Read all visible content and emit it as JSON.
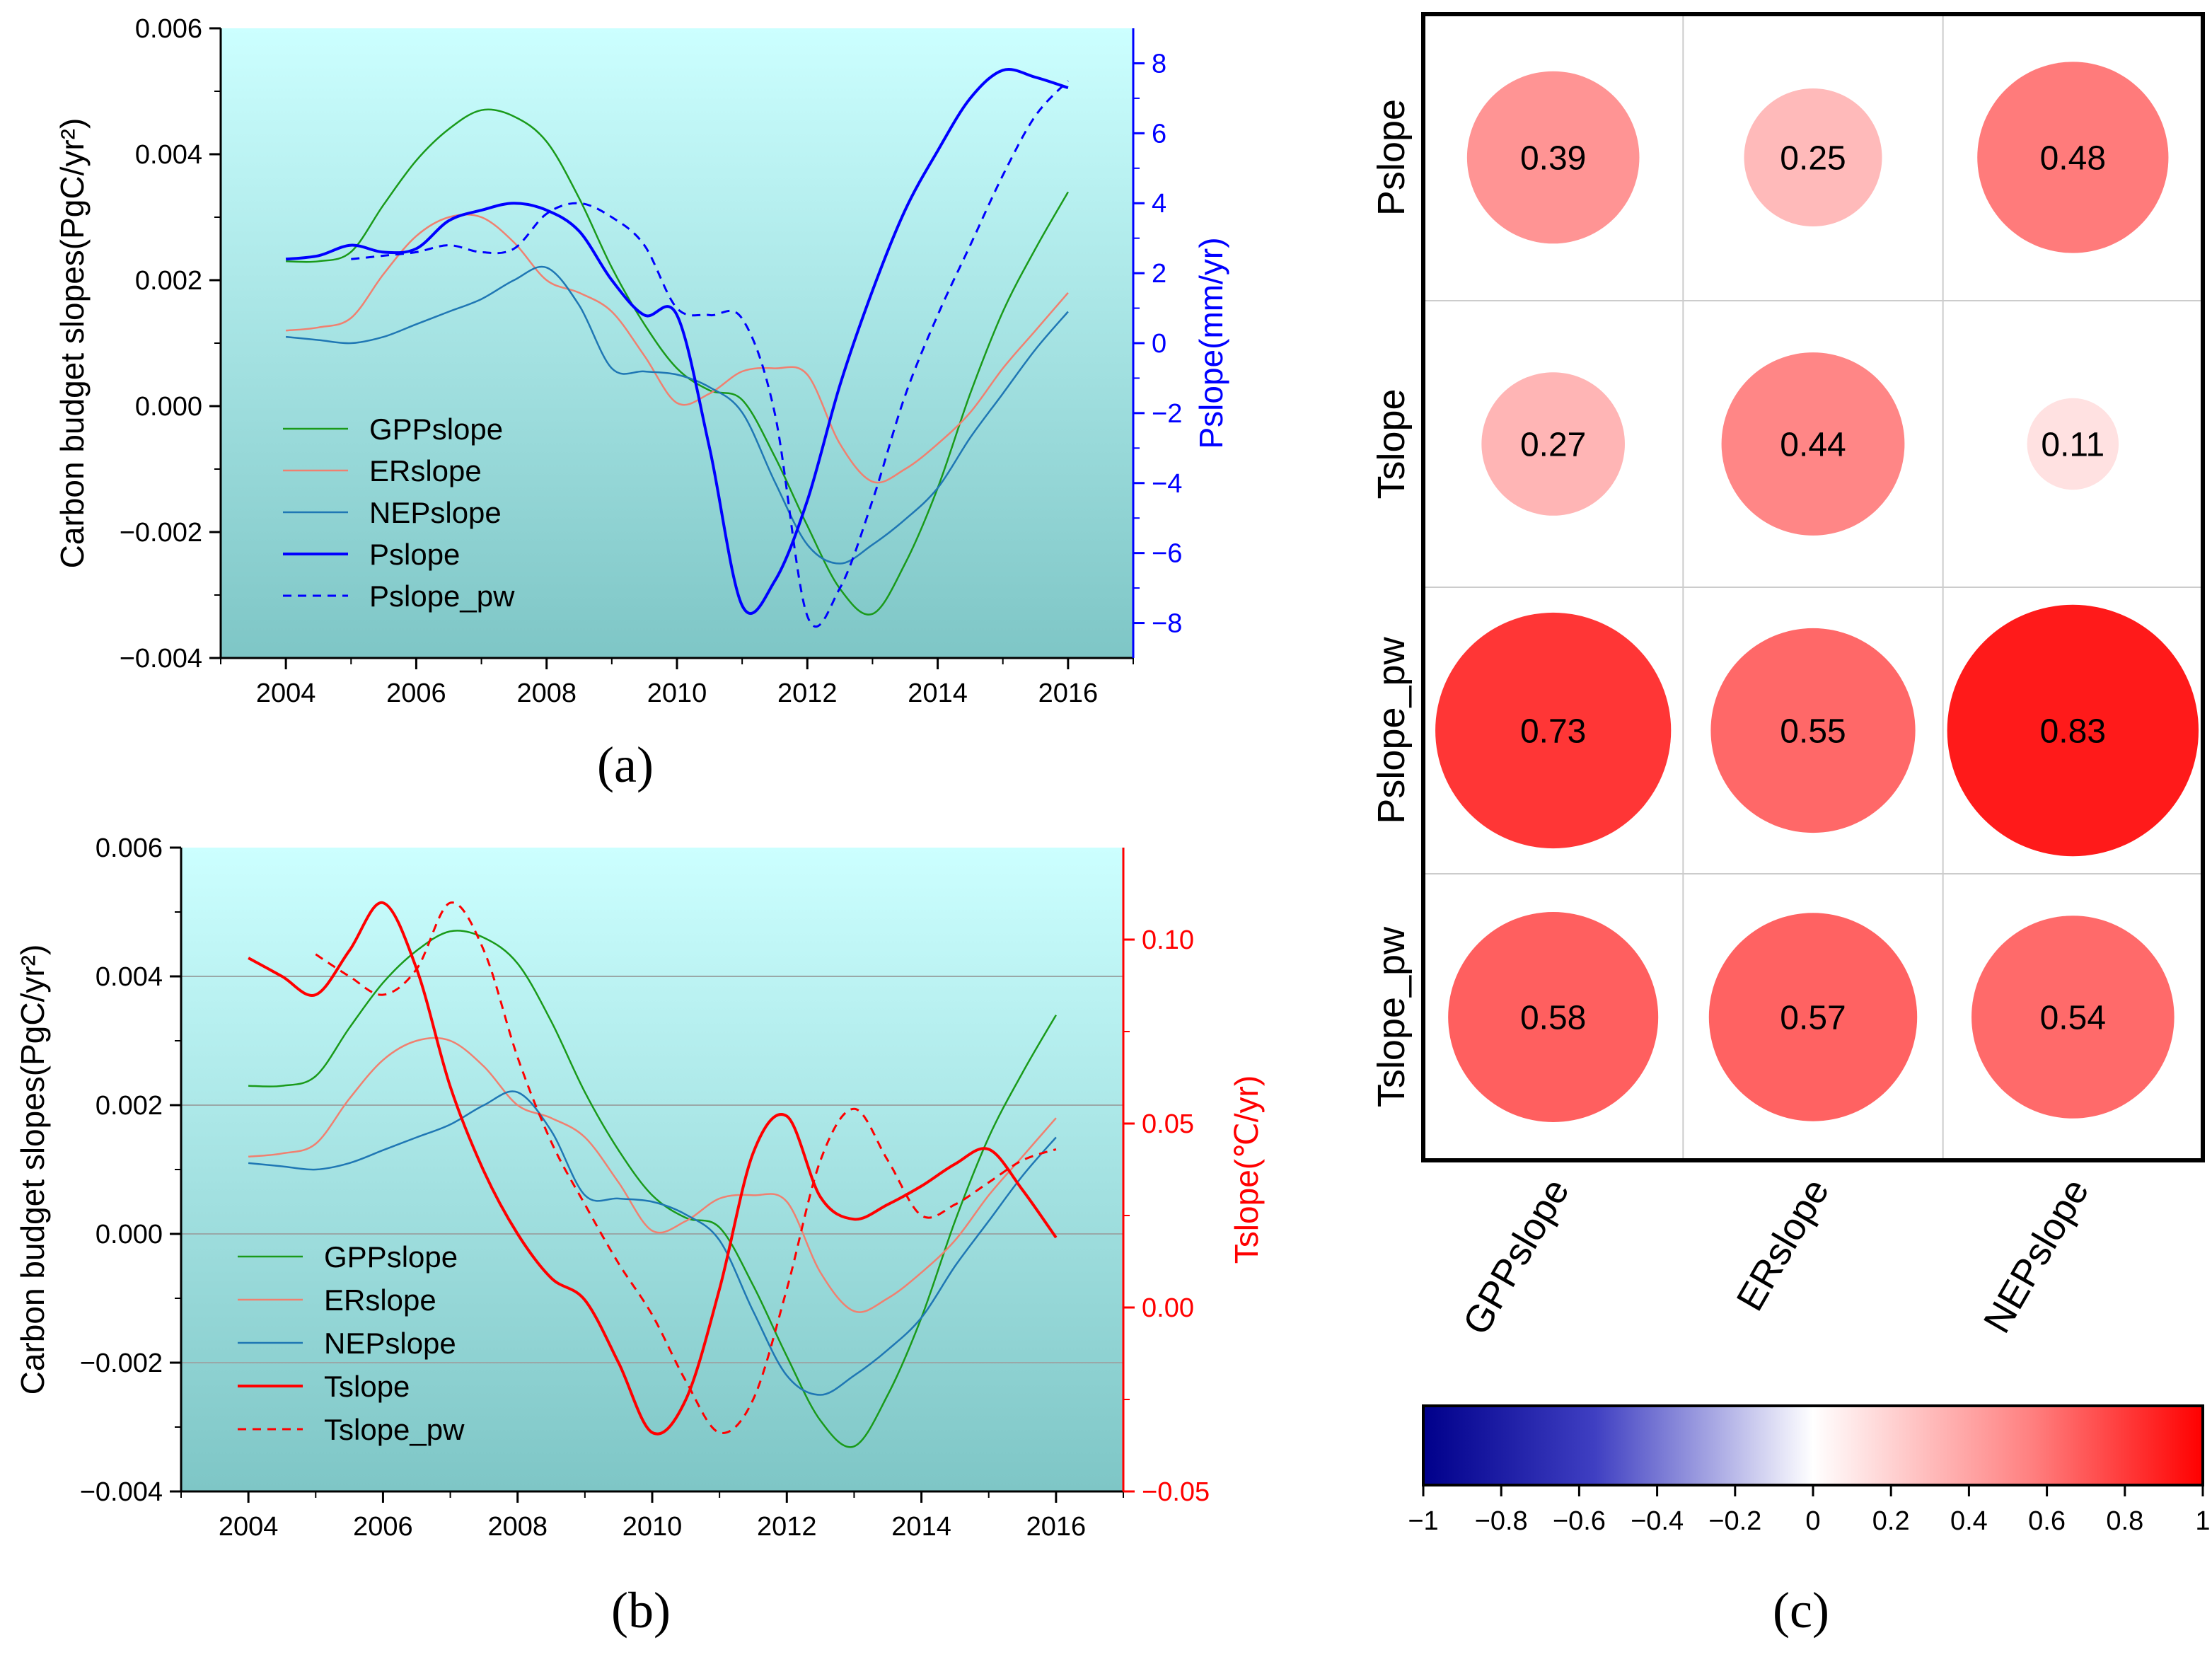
{
  "chart_data": [
    {
      "id": "a",
      "type": "line",
      "panel_label": "(a)",
      "xlim": [
        2003,
        2017
      ],
      "x_ticks": [
        "2004",
        "2006",
        "2008",
        "2010",
        "2012",
        "2014",
        "2016"
      ],
      "x_tick_values": [
        2004,
        2006,
        2008,
        2010,
        2012,
        2014,
        2016
      ],
      "ylabel": "Carbon budget slopes(PgC/yr²)",
      "ylim": [
        -0.004,
        0.006
      ],
      "y_ticks": [
        "−0.004",
        "−0.002",
        "0.000",
        "0.002",
        "0.004",
        "0.006"
      ],
      "y_tick_values": [
        -0.004,
        -0.002,
        0,
        0.002,
        0.004,
        0.006
      ],
      "y2label": "Pslope(mm/yr)",
      "y2lim": [
        -9,
        9
      ],
      "y2_ticks": [
        "−8",
        "−6",
        "−4",
        "−2",
        "0",
        "2",
        "4",
        "6",
        "8"
      ],
      "y2_tick_values": [
        -8,
        -6,
        -4,
        -2,
        0,
        2,
        4,
        6,
        8
      ],
      "y2_color": "#0000ff",
      "legend": [
        "GPPslope",
        "ERslope",
        "NEPslope",
        "Pslope",
        "Pslope_pw"
      ],
      "series": [
        {
          "name": "GPPslope",
          "axis": "left",
          "color": "#1a9a1a",
          "dash": false,
          "width": 2.5,
          "x": [
            2004,
            2004.5,
            2005,
            2005.5,
            2006,
            2006.5,
            2007,
            2007.5,
            2008,
            2008.5,
            2009,
            2009.5,
            2010,
            2010.5,
            2011,
            2011.5,
            2012,
            2012.5,
            2013,
            2013.5,
            2014,
            2014.5,
            2015,
            2015.5,
            2016
          ],
          "values": [
            0.0023,
            0.0023,
            0.00245,
            0.0032,
            0.0039,
            0.0044,
            0.0047,
            0.0046,
            0.0042,
            0.0033,
            0.0022,
            0.0013,
            0.0006,
            0.00025,
            0.0001,
            -0.0008,
            -0.0019,
            -0.0029,
            -0.0033,
            -0.0025,
            -0.0013,
            0.0002,
            0.0015,
            0.0025,
            0.0034
          ]
        },
        {
          "name": "ERslope",
          "axis": "left",
          "color": "#f08070",
          "dash": false,
          "width": 2.5,
          "x": [
            2004,
            2004.5,
            2005,
            2005.5,
            2006,
            2006.5,
            2007,
            2007.5,
            2008,
            2008.5,
            2009,
            2009.5,
            2010,
            2010.5,
            2011,
            2011.5,
            2012,
            2012.5,
            2013,
            2013.5,
            2014,
            2014.5,
            2015,
            2015.5,
            2016
          ],
          "values": [
            0.0012,
            0.00125,
            0.0014,
            0.0021,
            0.0027,
            0.003,
            0.003,
            0.0026,
            0.002,
            0.0018,
            0.0015,
            0.0008,
            5e-05,
            0.0002,
            0.00055,
            0.0006,
            0.0005,
            -0.0006,
            -0.0012,
            -0.001,
            -0.0006,
            -0.0001,
            0.0006,
            0.0012,
            0.0018
          ]
        },
        {
          "name": "NEPslope",
          "axis": "left",
          "color": "#1f77b4",
          "dash": false,
          "width": 2.5,
          "x": [
            2004,
            2004.5,
            2005,
            2005.5,
            2006,
            2006.5,
            2007,
            2007.5,
            2008,
            2008.5,
            2009,
            2009.5,
            2010,
            2010.5,
            2011,
            2011.5,
            2012,
            2012.5,
            2013,
            2013.5,
            2014,
            2014.5,
            2015,
            2015.5,
            2016
          ],
          "values": [
            0.0011,
            0.00105,
            0.001,
            0.0011,
            0.0013,
            0.0015,
            0.0017,
            0.002,
            0.0022,
            0.0016,
            0.0006,
            0.00055,
            0.0005,
            0.0003,
            -0.0001,
            -0.0012,
            -0.0022,
            -0.0025,
            -0.0022,
            -0.0018,
            -0.0013,
            -0.0005,
            0.0002,
            0.0009,
            0.0015
          ]
        },
        {
          "name": "Pslope",
          "axis": "right",
          "color": "#0000ff",
          "dash": false,
          "width": 4,
          "x": [
            2004,
            2004.5,
            2005,
            2005.5,
            2006,
            2006.5,
            2007,
            2007.5,
            2008,
            2008.5,
            2009,
            2009.5,
            2010,
            2010.5,
            2011,
            2011.5,
            2012,
            2012.5,
            2013,
            2013.5,
            2014,
            2014.5,
            2015,
            2015.5,
            2016
          ],
          "values": [
            2.4,
            2.5,
            2.8,
            2.6,
            2.7,
            3.5,
            3.8,
            4.0,
            3.8,
            3.2,
            1.8,
            0.8,
            0.8,
            -3.0,
            -7.5,
            -6.8,
            -4.5,
            -1.2,
            1.5,
            3.8,
            5.5,
            7.0,
            7.8,
            7.6,
            7.3
          ]
        },
        {
          "name": "Pslope_pw",
          "axis": "right",
          "color": "#0000ff",
          "dash": true,
          "width": 3,
          "x": [
            2005,
            2005.5,
            2006,
            2006.5,
            2007,
            2007.5,
            2008,
            2008.5,
            2009,
            2009.5,
            2010,
            2010.5,
            2011,
            2011.5,
            2012,
            2012.5,
            2013,
            2013.5,
            2014,
            2014.5,
            2015,
            2015.5,
            2016
          ],
          "values": [
            2.4,
            2.5,
            2.6,
            2.8,
            2.6,
            2.7,
            3.7,
            4.0,
            3.6,
            2.8,
            1.0,
            0.8,
            0.7,
            -2.0,
            -7.8,
            -7.0,
            -4.5,
            -1.5,
            0.8,
            2.8,
            4.8,
            6.5,
            7.5
          ]
        }
      ]
    },
    {
      "id": "b",
      "type": "line",
      "panel_label": "(b)",
      "xlim": [
        2003,
        2017
      ],
      "x_ticks": [
        "2004",
        "2006",
        "2008",
        "2010",
        "2012",
        "2014",
        "2016"
      ],
      "x_tick_values": [
        2004,
        2006,
        2008,
        2010,
        2012,
        2014,
        2016
      ],
      "ylabel": "Carbon budget slopes(PgC/yr²)",
      "ylim": [
        -0.004,
        0.006
      ],
      "y_ticks": [
        "−0.004",
        "−0.002",
        "0.000",
        "0.002",
        "0.004",
        "0.006"
      ],
      "y_tick_values": [
        -0.004,
        -0.002,
        0,
        0.002,
        0.004,
        0.006
      ],
      "grid": true,
      "y2label": "Tslope(℃/yr)",
      "y2lim": [
        -0.05,
        0.125
      ],
      "y2_ticks": [
        "−0.05",
        "0.00",
        "0.05",
        "0.10"
      ],
      "y2_tick_values": [
        -0.05,
        0,
        0.05,
        0.1
      ],
      "y2_color": "#ff0000",
      "legend": [
        "GPPslope",
        "ERslope",
        "NEPslope",
        "Tslope",
        "Tslope_pw"
      ],
      "series": [
        {
          "name": "GPPslope",
          "axis": "left",
          "color": "#1a9a1a",
          "dash": false,
          "width": 2.5,
          "x": [
            2004,
            2004.5,
            2005,
            2005.5,
            2006,
            2006.5,
            2007,
            2007.5,
            2008,
            2008.5,
            2009,
            2009.5,
            2010,
            2010.5,
            2011,
            2011.5,
            2012,
            2012.5,
            2013,
            2013.5,
            2014,
            2014.5,
            2015,
            2015.5,
            2016
          ],
          "values": [
            0.0023,
            0.0023,
            0.00245,
            0.0032,
            0.0039,
            0.0044,
            0.0047,
            0.0046,
            0.0042,
            0.0033,
            0.0022,
            0.0013,
            0.0006,
            0.00025,
            0.0001,
            -0.0008,
            -0.0019,
            -0.0029,
            -0.0033,
            -0.0025,
            -0.0013,
            0.0002,
            0.0015,
            0.0025,
            0.0034
          ]
        },
        {
          "name": "ERslope",
          "axis": "left",
          "color": "#f08070",
          "dash": false,
          "width": 2.5,
          "x": [
            2004,
            2004.5,
            2005,
            2005.5,
            2006,
            2006.5,
            2007,
            2007.5,
            2008,
            2008.5,
            2009,
            2009.5,
            2010,
            2010.5,
            2011,
            2011.5,
            2012,
            2012.5,
            2013,
            2013.5,
            2014,
            2014.5,
            2015,
            2015.5,
            2016
          ],
          "values": [
            0.0012,
            0.00125,
            0.0014,
            0.0021,
            0.0027,
            0.003,
            0.003,
            0.0026,
            0.002,
            0.0018,
            0.0015,
            0.0008,
            5e-05,
            0.0002,
            0.00055,
            0.0006,
            0.0005,
            -0.0006,
            -0.0012,
            -0.001,
            -0.0006,
            -0.0001,
            0.0006,
            0.0012,
            0.0018
          ]
        },
        {
          "name": "NEPslope",
          "axis": "left",
          "color": "#1f77b4",
          "dash": false,
          "width": 2.5,
          "x": [
            2004,
            2004.5,
            2005,
            2005.5,
            2006,
            2006.5,
            2007,
            2007.5,
            2008,
            2008.5,
            2009,
            2009.5,
            2010,
            2010.5,
            2011,
            2011.5,
            2012,
            2012.5,
            2013,
            2013.5,
            2014,
            2014.5,
            2015,
            2015.5,
            2016
          ],
          "values": [
            0.0011,
            0.00105,
            0.001,
            0.0011,
            0.0013,
            0.0015,
            0.0017,
            0.002,
            0.0022,
            0.0016,
            0.0006,
            0.00055,
            0.0005,
            0.0003,
            -0.0001,
            -0.0012,
            -0.0022,
            -0.0025,
            -0.0022,
            -0.0018,
            -0.0013,
            -0.0005,
            0.0002,
            0.0009,
            0.0015
          ]
        },
        {
          "name": "Tslope",
          "axis": "right",
          "color": "#ff0000",
          "dash": false,
          "width": 4,
          "x": [
            2004,
            2004.5,
            2005,
            2005.5,
            2006,
            2006.5,
            2007,
            2007.5,
            2008,
            2008.5,
            2009,
            2009.5,
            2010,
            2010.5,
            2011,
            2011.5,
            2012,
            2012.5,
            2013,
            2013.5,
            2014,
            2014.5,
            2015,
            2015.5,
            2016
          ],
          "values": [
            0.095,
            0.09,
            0.085,
            0.097,
            0.11,
            0.092,
            0.06,
            0.037,
            0.02,
            0.008,
            0.002,
            -0.015,
            -0.034,
            -0.025,
            0.005,
            0.042,
            0.052,
            0.03,
            0.024,
            0.028,
            0.033,
            0.039,
            0.043,
            0.032,
            0.019
          ]
        },
        {
          "name": "Tslope_pw",
          "axis": "right",
          "color": "#ff0000",
          "dash": true,
          "width": 3,
          "x": [
            2005,
            2005.5,
            2006,
            2006.5,
            2007,
            2007.5,
            2008,
            2008.5,
            2009,
            2009.5,
            2010,
            2010.5,
            2011,
            2011.5,
            2012,
            2012.5,
            2013,
            2013.5,
            2014,
            2014.5,
            2015,
            2015.5,
            2016
          ],
          "values": [
            0.096,
            0.09,
            0.085,
            0.092,
            0.11,
            0.097,
            0.068,
            0.045,
            0.028,
            0.012,
            -0.002,
            -0.02,
            -0.034,
            -0.025,
            0.005,
            0.04,
            0.054,
            0.04,
            0.025,
            0.028,
            0.034,
            0.04,
            0.043
          ]
        }
      ]
    },
    {
      "id": "c",
      "type": "heatmap",
      "panel_label": "(c)",
      "rows": [
        "Pslope",
        "Tslope",
        "Pslope_pw",
        "Tslope_pw"
      ],
      "columns": [
        "GPPslope",
        "ERslope",
        "NEPslope"
      ],
      "values": [
        [
          0.39,
          0.25,
          0.48
        ],
        [
          0.27,
          0.44,
          0.11
        ],
        [
          0.73,
          0.55,
          0.83
        ],
        [
          0.58,
          0.57,
          0.54
        ]
      ],
      "value_labels": [
        [
          "0.39",
          "0.25",
          "0.48"
        ],
        [
          "0.27",
          "0.44",
          "0.11"
        ],
        [
          "0.73",
          "0.55",
          "0.83"
        ],
        [
          "0.58",
          "0.57",
          "0.54"
        ]
      ],
      "colorbar": {
        "range": [
          -1,
          1
        ],
        "ticks": [
          "−1",
          "−0.8",
          "−0.6",
          "−0.4",
          "−0.2",
          "0",
          "0.2",
          "0.4",
          "0.6",
          "0.8",
          "1"
        ],
        "tick_values": [
          -1,
          -0.8,
          -0.6,
          -0.4,
          -0.2,
          0,
          0.2,
          0.4,
          0.6,
          0.8,
          1
        ],
        "low_color": "#00008b",
        "mid_color": "#ffffff",
        "high_color": "#ff0000"
      }
    }
  ]
}
